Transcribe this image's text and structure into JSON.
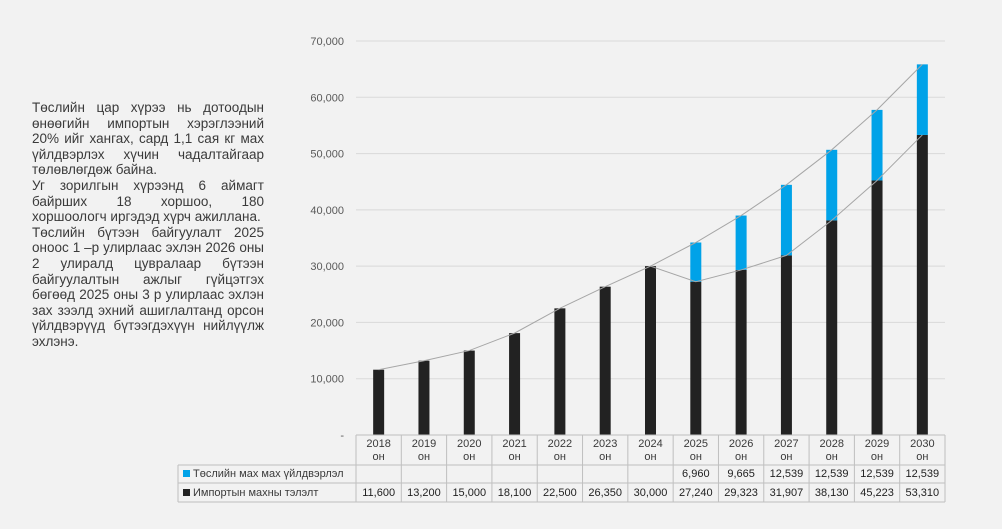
{
  "description": [
    "Төслийн цар хүрээ нь дотоодын өнөөгийн импортын хэрэглээний 20% ийг хангах, сард 1,1 сая кг мах үйлдвэрлэх хүчин чадалтайгаар төлөвлөгдөж байна.",
    "Уг зорилгын хүрээнд 6 аймагт байрших 18 хоршоо, 180 хоршоологч иргэдэд хүрч ажиллана.",
    "Төслийн бүтээн байгуулалт 2025 оноос 1 –р улирлаас эхлэн 2026 оны 2 улиралд цувралаар бүтээн байгуулалтын ажлыг гүйцэтгэх бөгөөд 2025 оны 3 р улирлаас эхлэн зах зээлд эхний ашиглалтанд орсон үйлдвэрүүд бүтээгдэхүүн нийлүүлж эхлэнэ."
  ],
  "colors": {
    "project": "#00a2e8",
    "import": "#222222",
    "line": "#a6a6a6",
    "grid": "#d9d9d9"
  },
  "chart_data": {
    "type": "bar",
    "stacked": true,
    "categories": [
      "2018 он",
      "2019 он",
      "2020 он",
      "2021 он",
      "2022 он",
      "2023 он",
      "2024 он",
      "2025 он",
      "2026 он",
      "2027 он",
      "2028 он",
      "2029 он",
      "2030 он"
    ],
    "y_tick_labels": [
      "-",
      "10,000",
      "20,000",
      "30,000",
      "40,000",
      "50,000",
      "60,000",
      "70,000"
    ],
    "ylim": [
      0,
      70000
    ],
    "grid": true,
    "legend_placement": "data-table",
    "series": [
      {
        "name": "Импортын махны тэлэлт",
        "color": "#222222",
        "values": [
          11600,
          13200,
          15000,
          18100,
          22500,
          26350,
          30000,
          27240,
          29323,
          31907,
          38130,
          45223,
          53310
        ],
        "labels": [
          "11,600",
          "13,200",
          "15,000",
          "18,100",
          "22,500",
          "26,350",
          "30,000",
          "27,240",
          "29,323",
          "31,907",
          "38,130",
          "45,223",
          "53,310"
        ]
      },
      {
        "name": "Төслийн мах мах үйлдвэрлэл",
        "color": "#00a2e8",
        "values": [
          null,
          null,
          null,
          null,
          null,
          null,
          null,
          6960,
          9665,
          12539,
          12539,
          12539,
          12539
        ],
        "labels": [
          "",
          "",
          "",
          "",
          "",
          "",
          "",
          "6,960",
          "9,665",
          "12,539",
          "12,539",
          "12,539",
          "12,539"
        ]
      }
    ]
  }
}
